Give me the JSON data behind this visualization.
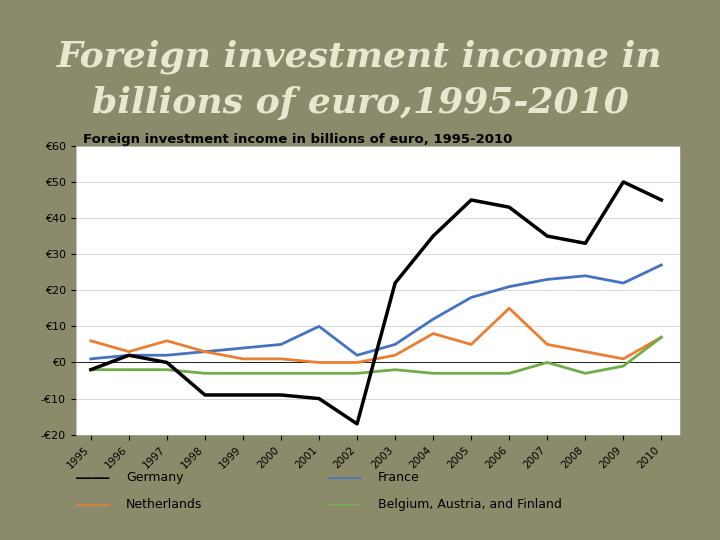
{
  "title_line1": "Foreign investment income in",
  "title_line2": "billions of euro,1995-2010",
  "chart_title": "Foreign investment income in billions of euro, 1995-2010",
  "years": [
    1995,
    1996,
    1997,
    1998,
    1999,
    2000,
    2001,
    2002,
    2003,
    2004,
    2005,
    2006,
    2007,
    2008,
    2009,
    2010
  ],
  "germany": [
    -2,
    2,
    0,
    -9,
    -9,
    -9,
    -10,
    -17,
    22,
    35,
    45,
    43,
    35,
    33,
    50,
    45
  ],
  "france": [
    1,
    2,
    2,
    3,
    4,
    5,
    10,
    2,
    5,
    12,
    18,
    21,
    23,
    24,
    22,
    27
  ],
  "netherlands": [
    6,
    3,
    6,
    3,
    1,
    1,
    0,
    0,
    2,
    8,
    5,
    15,
    5,
    3,
    1,
    7
  ],
  "baf": [
    -2,
    -2,
    -2,
    -3,
    -3,
    -3,
    -3,
    -3,
    -2,
    -3,
    -3,
    -3,
    0,
    -3,
    -1,
    7
  ],
  "germany_color": "#000000",
  "france_color": "#4472c4",
  "netherlands_color": "#ed7d31",
  "baf_color": "#70ad47",
  "outer_bg": "#8b8b6b",
  "chart_outer_bg": "#b8c8d8",
  "plot_area_bg": "#ffffff",
  "ylim": [
    -20,
    60
  ],
  "yticks": [
    -20,
    -10,
    0,
    10,
    20,
    30,
    40,
    50,
    60
  ],
  "legend_germany": "Germany",
  "legend_france": "France",
  "legend_netherlands": "Netherlands",
  "legend_baf": "Belgium, Austria, and Finland",
  "title_fontsize": 26,
  "title_color": "#e8e8d0",
  "chart_title_fontsize": 9.5,
  "linewidth": 2.0
}
